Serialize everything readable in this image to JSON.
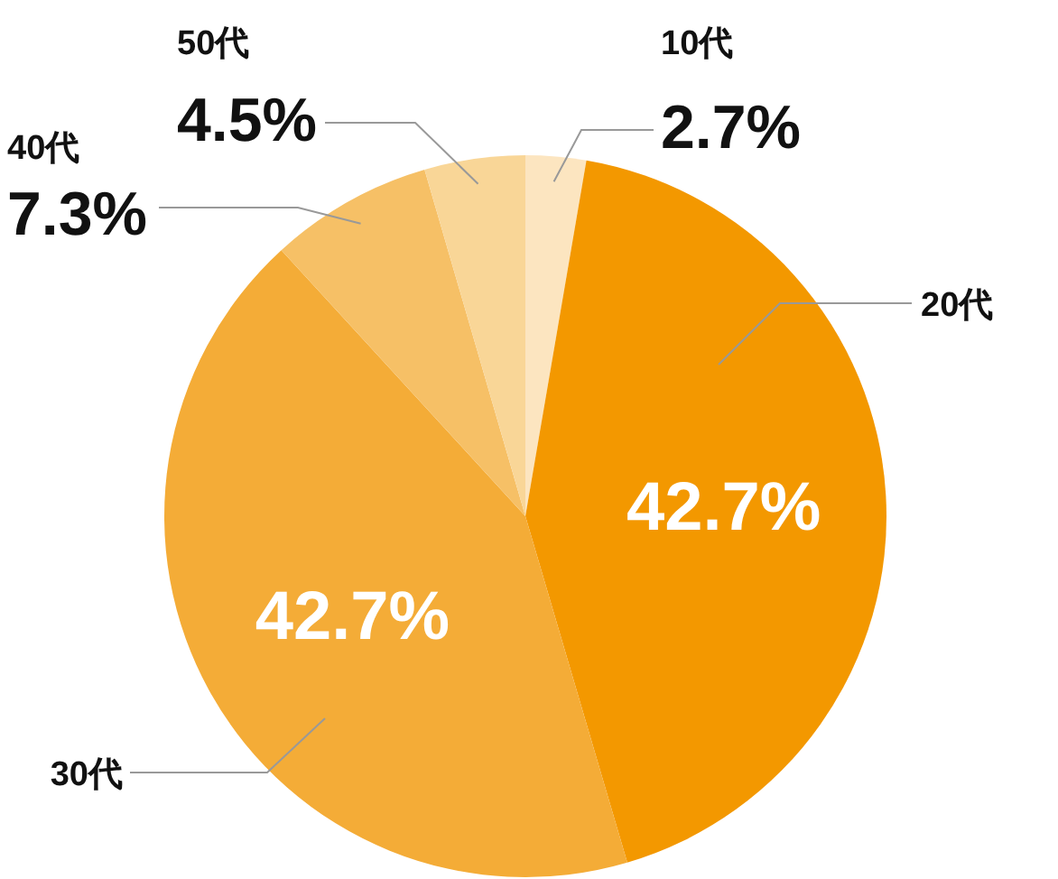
{
  "chart_data": {
    "type": "pie",
    "categories": [
      "10代",
      "20代",
      "30代",
      "40代",
      "50代"
    ],
    "values": [
      2.7,
      42.7,
      42.7,
      7.3,
      4.5
    ],
    "colors": [
      "#fce5c0",
      "#f39800",
      "#f4ac37",
      "#f6c066",
      "#f9d697"
    ],
    "value_labels": [
      "2.7%",
      "42.7%",
      "42.7%",
      "7.3%",
      "4.5%"
    ]
  }
}
